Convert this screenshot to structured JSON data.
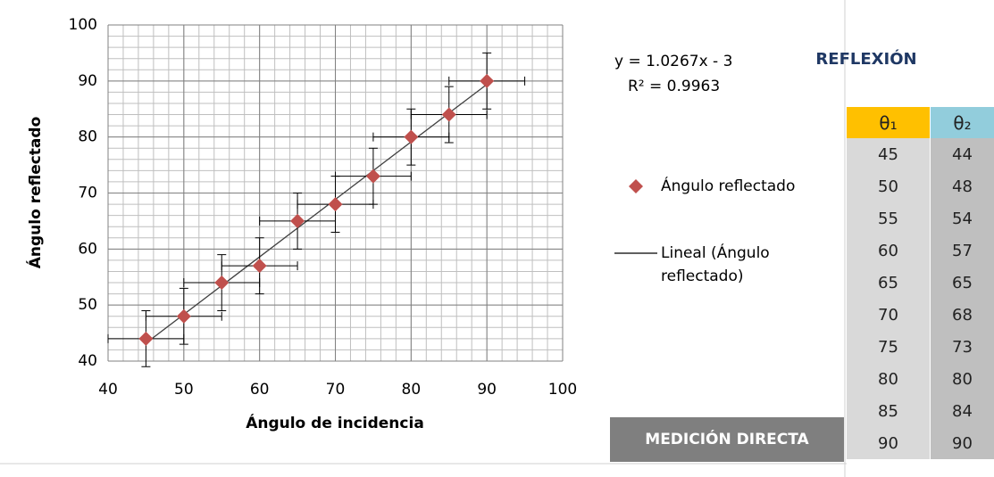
{
  "chart_data": {
    "type": "scatter",
    "xlabel": "Ángulo de incidencia",
    "ylabel": "Ángulo reflectado",
    "xlim": [
      40,
      100
    ],
    "xticks": [
      40,
      50,
      60,
      70,
      80,
      90,
      100
    ],
    "ylim": [
      40,
      100
    ],
    "yticks": [
      40,
      50,
      60,
      70,
      80,
      90,
      100
    ],
    "grid": true,
    "minor_grid_step": 2,
    "series": [
      {
        "name": "Ángulo reflectado",
        "color": "#c0504d",
        "x": [
          45,
          50,
          55,
          60,
          65,
          70,
          75,
          80,
          85,
          90
        ],
        "values": [
          44,
          48,
          54,
          57,
          65,
          68,
          73,
          80,
          84,
          90
        ],
        "x_error": 5,
        "y_error": 5
      }
    ],
    "trendline": {
      "name": "Lineal (Ángulo reflectado)",
      "slope": 1.0267,
      "intercept": -3,
      "equation": "y = 1.0267x - 3",
      "r2": "R² = 0.9963",
      "color": "#404040"
    },
    "legend": "right"
  },
  "table": {
    "title": "REFLEXIÓN",
    "headers": [
      "θ₁",
      "θ₂"
    ],
    "rows": [
      [
        "45",
        "44"
      ],
      [
        "50",
        "48"
      ],
      [
        "55",
        "54"
      ],
      [
        "60",
        "57"
      ],
      [
        "65",
        "65"
      ],
      [
        "70",
        "68"
      ],
      [
        "75",
        "73"
      ],
      [
        "80",
        "80"
      ],
      [
        "85",
        "84"
      ],
      [
        "90",
        "90"
      ]
    ]
  },
  "button": {
    "label": "MEDICIÓN DIRECTA"
  }
}
